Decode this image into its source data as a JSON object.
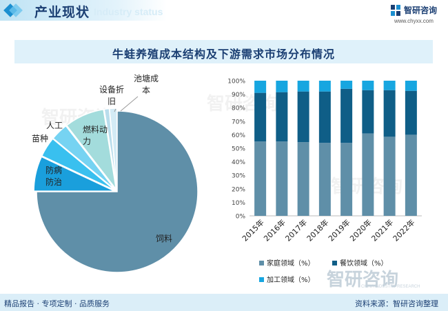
{
  "header": {
    "title": "产业现状",
    "ghost_text": "Industry status",
    "brand_name": "智研咨询",
    "brand_url": "www.chyxx.com"
  },
  "title": "牛蛙养殖成本结构及下游需求市场分布情况",
  "watermark": {
    "brand": "智研咨询",
    "sub": "CHINA INDUSTRY RESEARCH"
  },
  "footer": {
    "left": "精品报告 · 专项定制 · 品质服务",
    "right": "资料来源：智研咨询整理"
  },
  "colors": {
    "feed": "#5f8fa8",
    "disease": "#1a9fdc",
    "seedling": "#39c0ef",
    "labor": "#76d3f2",
    "fuel": "#a3dcdc",
    "equipment": "#b9ddec",
    "pond": "#d3ebf5",
    "household": "#5f8fa8",
    "catering": "#0f5e87",
    "processing": "#17a6e0"
  },
  "chart_data": [
    {
      "type": "pie",
      "labels": [
        "饲料",
        "防病防治",
        "苗种",
        "人工",
        "燃料动力",
        "设备折旧",
        "池塘成本"
      ],
      "values": [
        75,
        7,
        4,
        3.5,
        8,
        1,
        1.5
      ],
      "value_note": ""
    },
    {
      "type": "bar",
      "stacked": true,
      "categories": [
        "2015年",
        "2016年",
        "2017年",
        "2018年",
        "2019年",
        "2020年",
        "2021年",
        "2022年"
      ],
      "series": [
        {
          "name": "家庭领域（%）",
          "values": [
            55,
            55,
            54.5,
            54,
            54,
            61,
            58.5,
            60
          ]
        },
        {
          "name": "餐饮领域（%）",
          "values": [
            36,
            36.5,
            37.5,
            38,
            40,
            32,
            34.5,
            32.5
          ]
        },
        {
          "name": "加工领域（%）",
          "values": [
            9,
            8.5,
            8,
            8,
            6,
            7,
            7,
            7.5
          ]
        }
      ],
      "ylim": [
        0,
        100
      ],
      "yticks": [
        "0%",
        "10%",
        "20%",
        "30%",
        "40%",
        "50%",
        "60%",
        "70%",
        "80%",
        "90%",
        "100%"
      ],
      "grid": false,
      "legend": "bottom"
    }
  ]
}
